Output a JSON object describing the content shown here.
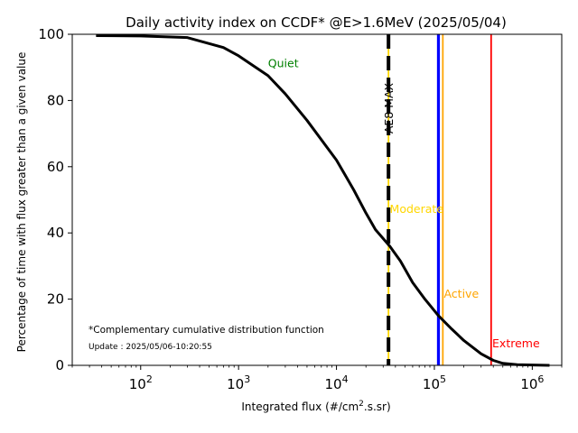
{
  "chart_data": {
    "type": "line",
    "title": "Daily activity index on CCDF* @E>1.6MeV (2025/05/04)",
    "xlabel": "Integrated flux (#/cm",
    "xlabel_sup": "2",
    "xlabel_end": ".s.sr)",
    "ylabel": "Percentage of time with flux greater than a given value",
    "xscale": "log",
    "xlim": [
      20,
      2000000
    ],
    "ylim": [
      0,
      100
    ],
    "x_ticks": [
      {
        "exp": "2",
        "value": 100
      },
      {
        "exp": "3",
        "value": 1000
      },
      {
        "exp": "4",
        "value": 10000
      },
      {
        "exp": "5",
        "value": 100000
      },
      {
        "exp": "6",
        "value": 1000000
      }
    ],
    "x_tick_base": "10",
    "y_ticks": [
      0,
      20,
      40,
      60,
      80,
      100
    ],
    "y_tick_labels": [
      "0",
      "20",
      "40",
      "60",
      "80",
      "100"
    ],
    "series": [
      {
        "color": "#000000",
        "x": [
          35,
          100,
          300,
          700,
          1000,
          1500,
          2000,
          3000,
          5000,
          10000,
          15000,
          20000,
          25000,
          35000,
          45000,
          60000,
          80000,
          110000,
          150000,
          200000,
          300000,
          400000,
          500000,
          700000,
          1000000,
          1500000
        ],
        "y": [
          99.6,
          99.5,
          99.0,
          96.0,
          93.5,
          90.0,
          87.5,
          82.0,
          74.0,
          62.0,
          53.0,
          46.0,
          41.0,
          36.0,
          31.5,
          25.0,
          20.0,
          15.0,
          11.0,
          7.5,
          3.5,
          1.5,
          0.6,
          0.2,
          0.1,
          0.0
        ]
      }
    ],
    "thresholds": [
      {
        "label": "Quiet",
        "color": "#008000",
        "x": 34000,
        "label_x": 2000,
        "label_y": 90,
        "style": "thin"
      },
      {
        "label": "AE8 MAX",
        "color": "#000000",
        "x": 34000,
        "style": "dashed"
      },
      {
        "label": "Moderate",
        "color": "#ffd700",
        "x": 34000,
        "label_x": 35000,
        "label_y": 46
      },
      {
        "label": "",
        "color": "#0000ff",
        "x": 110000,
        "style": "thick"
      },
      {
        "label": "Active",
        "color": "#ffa500",
        "x": 122000,
        "label_x": 125000,
        "label_y": 20.5
      },
      {
        "label": "Extreme",
        "color": "#ff0000",
        "x": 380000,
        "label_x": 390000,
        "label_y": 5.5
      }
    ],
    "notes": {
      "ccdf": "*Complementary cumulative distribution function",
      "update": "Update : 2025/05/06-10:20:55"
    },
    "grid": false
  }
}
